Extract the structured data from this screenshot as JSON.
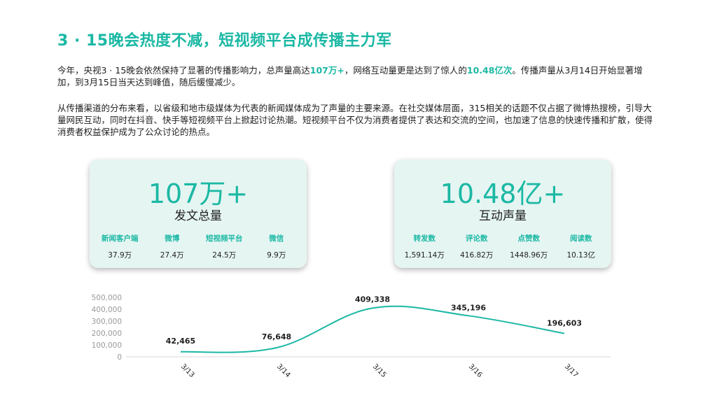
{
  "page": {
    "title": "3 · 15晚会热度不减，短视频平台成传播主力军",
    "paragraph1": {
      "pre": "今年，央视3 · 15晚会依然保持了显著的传播影响力，总声量高达",
      "hl1": "107万+",
      "mid": "，网络互动量更是达到了惊人的",
      "hl2": "10.48亿次",
      "post": "。传播声量从3月14日开始显著增加，到3月15日当天达到峰值，随后缓慢减少。"
    },
    "paragraph2": "从传播渠道的分布来看，以省级和地市级媒体为代表的新闻媒体成为了声量的主要来源。在社交媒体层面，315相关的话题不仅占据了微博热搜榜，引导大量网民互动，同时在抖音、快手等短视频平台上掀起讨论热潮。短视频平台不仅为消费者提供了表达和交流的空间，也加速了信息的快速传播和扩散，使得消费者权益保护成为了公众讨论的热点。"
  },
  "cards": [
    {
      "big": "107万+",
      "sub": "发文总量",
      "items": [
        {
          "label": "新闻客户端",
          "value": "37.9万"
        },
        {
          "label": "微博",
          "value": "27.4万"
        },
        {
          "label": "短视频平台",
          "value": "24.5万"
        },
        {
          "label": "微信",
          "value": "9.9万"
        }
      ]
    },
    {
      "big": "10.48亿+",
      "sub": "互动声量",
      "items": [
        {
          "label": "转发数",
          "value": "1,591.14万"
        },
        {
          "label": "评论数",
          "value": "416.82万"
        },
        {
          "label": "点赞数",
          "value": "1448.96万"
        },
        {
          "label": "阅读数",
          "value": "10.13亿"
        }
      ]
    }
  ],
  "chart_data": {
    "type": "line",
    "categories": [
      "3/13",
      "3/14",
      "3/15",
      "3/16",
      "3/17"
    ],
    "values": [
      42465,
      76648,
      409338,
      345196,
      196603
    ],
    "data_labels": [
      "42,465",
      "76,648",
      "409,338",
      "345,196",
      "196,603"
    ],
    "ylim": [
      0,
      500000
    ],
    "yticks": [
      0,
      100000,
      200000,
      300000,
      400000,
      500000
    ],
    "ytick_labels": [
      "0",
      "100,000",
      "200,000",
      "300,000",
      "400,000",
      "500,000"
    ],
    "grid": false,
    "smooth": true,
    "line_color": "#1bb8a4"
  },
  "colors": {
    "accent": "#1bb8a4",
    "card_bg": "#e5f5f2",
    "text": "#1f1f1f",
    "axis_text": "#999999"
  }
}
